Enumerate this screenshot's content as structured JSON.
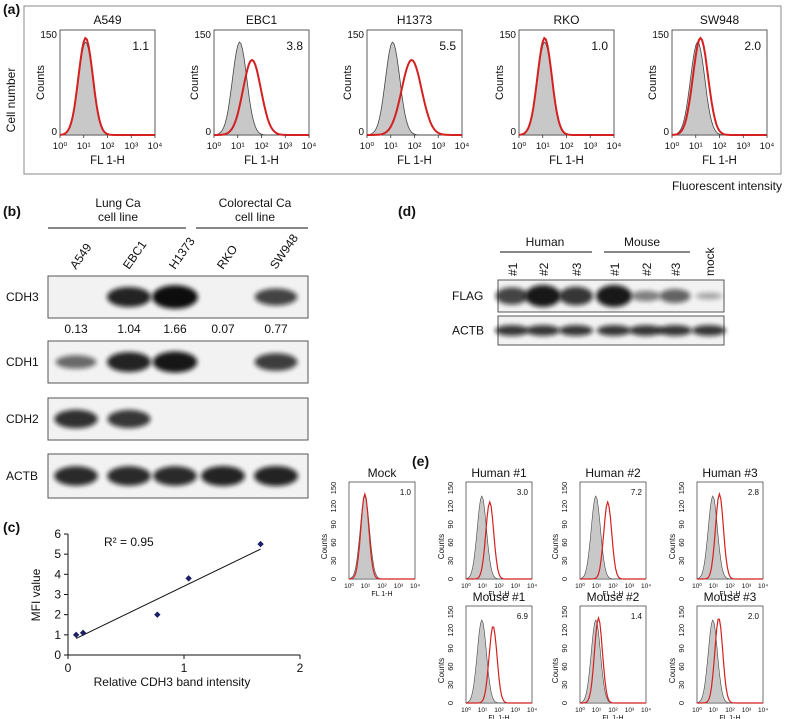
{
  "panel_labels": {
    "a": "(a)",
    "b": "(b)",
    "c": "(c)",
    "d": "(d)",
    "e": "(e)"
  },
  "panel_a": {
    "ylabel": "Cell number",
    "footer": "Fluorescent intensity",
    "axis_ylabel": "Counts",
    "axis_xlabel": "FL 1-H",
    "xticks": [
      "10⁰",
      "10¹",
      "10²",
      "10³",
      "10⁴"
    ],
    "ytick_top": "150",
    "ytick_bottom": "0",
    "colors": {
      "control_fill": "#c8c8c8",
      "control_line": "#444444",
      "sample_line": "#d42020"
    },
    "panels": [
      {
        "title": "A549",
        "value": "1.1"
      },
      {
        "title": "EBC1",
        "value": "3.8"
      },
      {
        "title": "H1373",
        "value": "5.5"
      },
      {
        "title": "RKO",
        "value": "1.0"
      },
      {
        "title": "SW948",
        "value": "2.0"
      }
    ]
  },
  "panel_b": {
    "group1": "Lung Ca\ncell line",
    "group2": "Colorectal Ca\ncell line",
    "lanes": [
      "A549",
      "EBC1",
      "H1373",
      "RKO",
      "SW948"
    ],
    "rows": [
      "CDH3",
      "CDH1",
      "CDH2",
      "ACTB"
    ],
    "cdh3_values": [
      "0.13",
      "1.04",
      "1.66",
      "0.07",
      "0.77"
    ]
  },
  "panel_d": {
    "group1": "Human",
    "group2": "Mouse",
    "lanes": [
      "#1",
      "#2",
      "#3",
      "#1",
      "#2",
      "#3",
      "mock"
    ],
    "rows": [
      "FLAG",
      "ACTB"
    ]
  },
  "panel_e": {
    "axis_ylabel": "Counts",
    "axis_xlabel": "FL 1-H",
    "yticks": [
      "0",
      "30",
      "60",
      "90",
      "120",
      "150"
    ],
    "xticks": [
      "10⁰",
      "10¹",
      "10²",
      "10³",
      "10⁴"
    ],
    "panels": [
      {
        "title": "Mock",
        "value": "1.0"
      },
      {
        "title": "Human #1",
        "value": "3.0"
      },
      {
        "title": "Human #2",
        "value": "7.2"
      },
      {
        "title": "Human #3",
        "value": "2.8"
      },
      {
        "title": "Mouse #1",
        "value": "6.9"
      },
      {
        "title": "Mouse #2",
        "value": "1.4"
      },
      {
        "title": "Mouse #3",
        "value": "2.0"
      }
    ]
  },
  "chart_data": {
    "type": "scatter",
    "annotation": "R² = 0.95",
    "xlabel": "Relative CDH3 band intensity",
    "ylabel": "MFI value",
    "xlim": [
      0,
      2
    ],
    "ylim": [
      0,
      6
    ],
    "xticks": [
      0,
      1,
      2
    ],
    "yticks": [
      0,
      1,
      2,
      3,
      4,
      5,
      6
    ],
    "points": [
      {
        "x": 0.07,
        "y": 1.0
      },
      {
        "x": 0.13,
        "y": 1.1
      },
      {
        "x": 0.77,
        "y": 2.0
      },
      {
        "x": 1.04,
        "y": 3.8
      },
      {
        "x": 1.66,
        "y": 5.5
      }
    ],
    "trendline": {
      "x": [
        0.07,
        1.66
      ],
      "y": [
        0.82,
        5.25
      ]
    },
    "grid": false,
    "marker_color": "#1f1f66"
  }
}
